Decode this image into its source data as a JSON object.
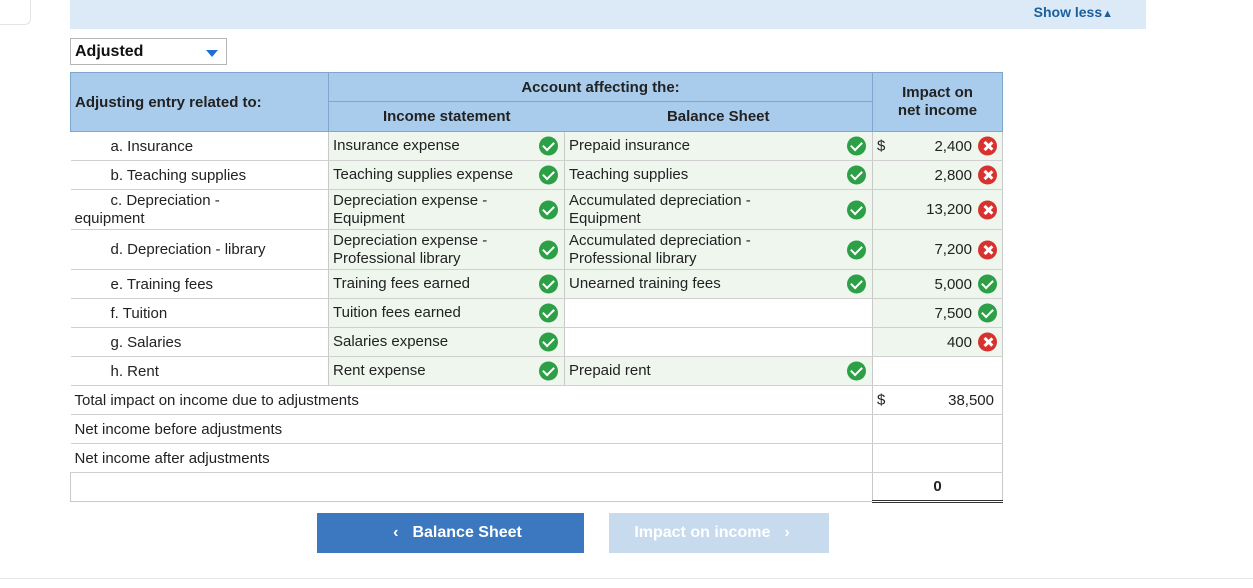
{
  "show_less": {
    "label": "Show less",
    "icon": "triangle-up-icon"
  },
  "dropdown": {
    "value": "Adjusted"
  },
  "headers": {
    "adjusting": "Adjusting entry related to:",
    "account_affecting": "Account affecting the:",
    "income_statement": "Income statement",
    "balance_sheet": "Balance Sheet",
    "impact_line1": "Impact on",
    "impact_line2": "net income"
  },
  "rows": [
    {
      "label": "a. Insurance",
      "income": "Insurance expense",
      "balance": "Prepaid insurance",
      "dollar": "$",
      "impact": "2,400",
      "impact_status": "incorrect"
    },
    {
      "label": "b. Teaching supplies",
      "income": "Teaching supplies expense",
      "balance": "Teaching supplies",
      "impact": "2,800",
      "impact_status": "incorrect"
    },
    {
      "label_line1": "c. Depreciation -",
      "label_line2": "equipment",
      "income_line1": "Depreciation expense -",
      "income_line2": "Equipment",
      "balance_line1": "Accumulated depreciation -",
      "balance_line2": "Equipment",
      "impact": "13,200",
      "impact_status": "incorrect"
    },
    {
      "label": "d. Depreciation - library",
      "income_line1": "Depreciation expense -",
      "income_line2": "Professional library",
      "balance_line1": "Accumulated depreciation -",
      "balance_line2": "Professional library",
      "impact": "7,200",
      "impact_status": "incorrect"
    },
    {
      "label": "e. Training fees",
      "income": "Training fees earned",
      "balance": "Unearned training fees",
      "impact": "5,000",
      "impact_status": "correct"
    },
    {
      "label": "f. Tuition",
      "income": "Tuition fees earned",
      "balance": "",
      "impact": "7,500",
      "impact_status": "correct"
    },
    {
      "label": "g. Salaries",
      "income": "Salaries expense",
      "balance": "",
      "impact": "400",
      "impact_status": "incorrect"
    },
    {
      "label": "h. Rent",
      "income": "Rent expense",
      "balance": "Prepaid rent",
      "impact": "",
      "impact_status": "none"
    }
  ],
  "totals": {
    "total_label": "Total impact on income due to adjustments",
    "total_dollar": "$",
    "total_value": "38,500",
    "before_label": "Net income before adjustments",
    "before_value": "",
    "after_label": "Net income after adjustments",
    "after_value": "",
    "final_value": "0"
  },
  "nav": {
    "prev_label": "Balance Sheet",
    "next_label": "Impact on income"
  },
  "colors": {
    "header_bg": "#a9ccec",
    "correct": "#2c9f47",
    "incorrect": "#d8322e",
    "button": "#3b78c0",
    "button_disabled": "#c7daee"
  }
}
